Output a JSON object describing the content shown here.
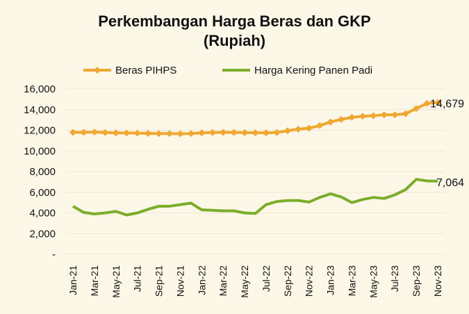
{
  "chart_data": {
    "type": "line",
    "title": "Perkembangan Harga Beras dan GKP",
    "subtitle": "(Rupiah)",
    "legend_placement": "top",
    "ylim": [
      0,
      16000
    ],
    "yticks": [
      "-",
      "2,000",
      "4,000",
      "6,000",
      "8,000",
      "10,000",
      "12,000",
      "14,000",
      "16,000"
    ],
    "grid": true,
    "x": [
      "Jan-21",
      "Feb-21",
      "Mar-21",
      "Apr-21",
      "May-21",
      "Jun-21",
      "Jul-21",
      "Aug-21",
      "Sep-21",
      "Oct-21",
      "Nov-21",
      "Dec-21",
      "Jan-22",
      "Feb-22",
      "Mar-22",
      "Apr-22",
      "May-22",
      "Jun-22",
      "Jul-22",
      "Aug-22",
      "Sep-22",
      "Oct-22",
      "Nov-22",
      "Dec-22",
      "Jan-23",
      "Feb-23",
      "Mar-23",
      "Apr-23",
      "May-23",
      "Jun-23",
      "Jul-23",
      "Aug-23",
      "Sep-23",
      "Oct-23",
      "Nov-23"
    ],
    "series": [
      {
        "name": "Beras PIHPS",
        "color": "#f0a830",
        "marker": "diamond",
        "end_label": "14,679",
        "values": [
          11800,
          11800,
          11820,
          11780,
          11750,
          11740,
          11720,
          11700,
          11680,
          11680,
          11660,
          11680,
          11750,
          11780,
          11800,
          11790,
          11770,
          11760,
          11750,
          11780,
          11950,
          12100,
          12200,
          12450,
          12800,
          13050,
          13250,
          13350,
          13400,
          13500,
          13500,
          13600,
          14100,
          14600,
          14679
        ]
      },
      {
        "name": "Harga Kering Panen Padi",
        "color": "#7aae28",
        "marker": "none",
        "end_label": "7,064",
        "values": [
          4650,
          4050,
          3900,
          4000,
          4150,
          3800,
          4000,
          4350,
          4650,
          4650,
          4800,
          4950,
          4300,
          4250,
          4200,
          4200,
          4000,
          3950,
          4800,
          5100,
          5200,
          5200,
          5050,
          5500,
          5850,
          5550,
          5000,
          5300,
          5500,
          5400,
          5750,
          6250,
          7250,
          7100,
          7064
        ]
      }
    ]
  }
}
